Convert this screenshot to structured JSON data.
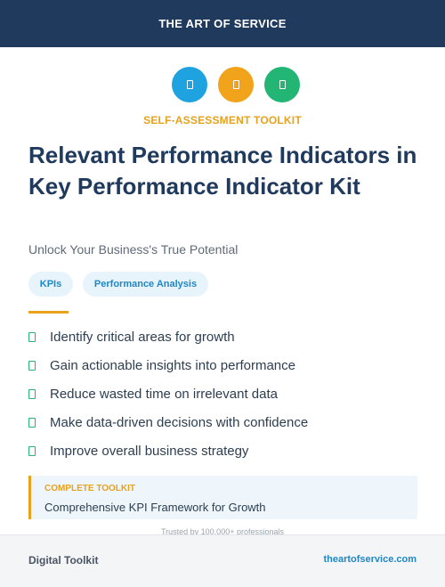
{
  "header": {
    "title": "THE ART OF SERVICE"
  },
  "icons": [
    {
      "name": "document-icon",
      "color": "#1fa3e0"
    },
    {
      "name": "document-icon",
      "color": "#f0a31b"
    },
    {
      "name": "document-icon",
      "color": "#22b573"
    }
  ],
  "eyebrow": "SELF-ASSESSMENT TOOLKIT",
  "title": "Relevant Performance Indicators in Key Performance Indicator Kit",
  "subtitle": "Unlock Your Business's True Potential",
  "tags": [
    "KPIs",
    "Performance Analysis"
  ],
  "bullets": [
    "Identify critical areas for growth",
    "Gain actionable insights into performance",
    "Reduce wasted time on irrelevant data",
    "Make data-driven decisions with confidence",
    "Improve overall business strategy"
  ],
  "callout": {
    "label": "COMPLETE TOOLKIT",
    "text": "Comprehensive KPI Framework for Growth"
  },
  "trusted": "Trusted by 100,000+ professionals",
  "footer": {
    "left": "Digital Toolkit",
    "right": "theartofservice.com"
  },
  "colors": {
    "navy": "#1f3a5c",
    "accent_orange": "#e8a21c",
    "accent_blue": "#1f87c7",
    "check_green": "#22b573"
  }
}
